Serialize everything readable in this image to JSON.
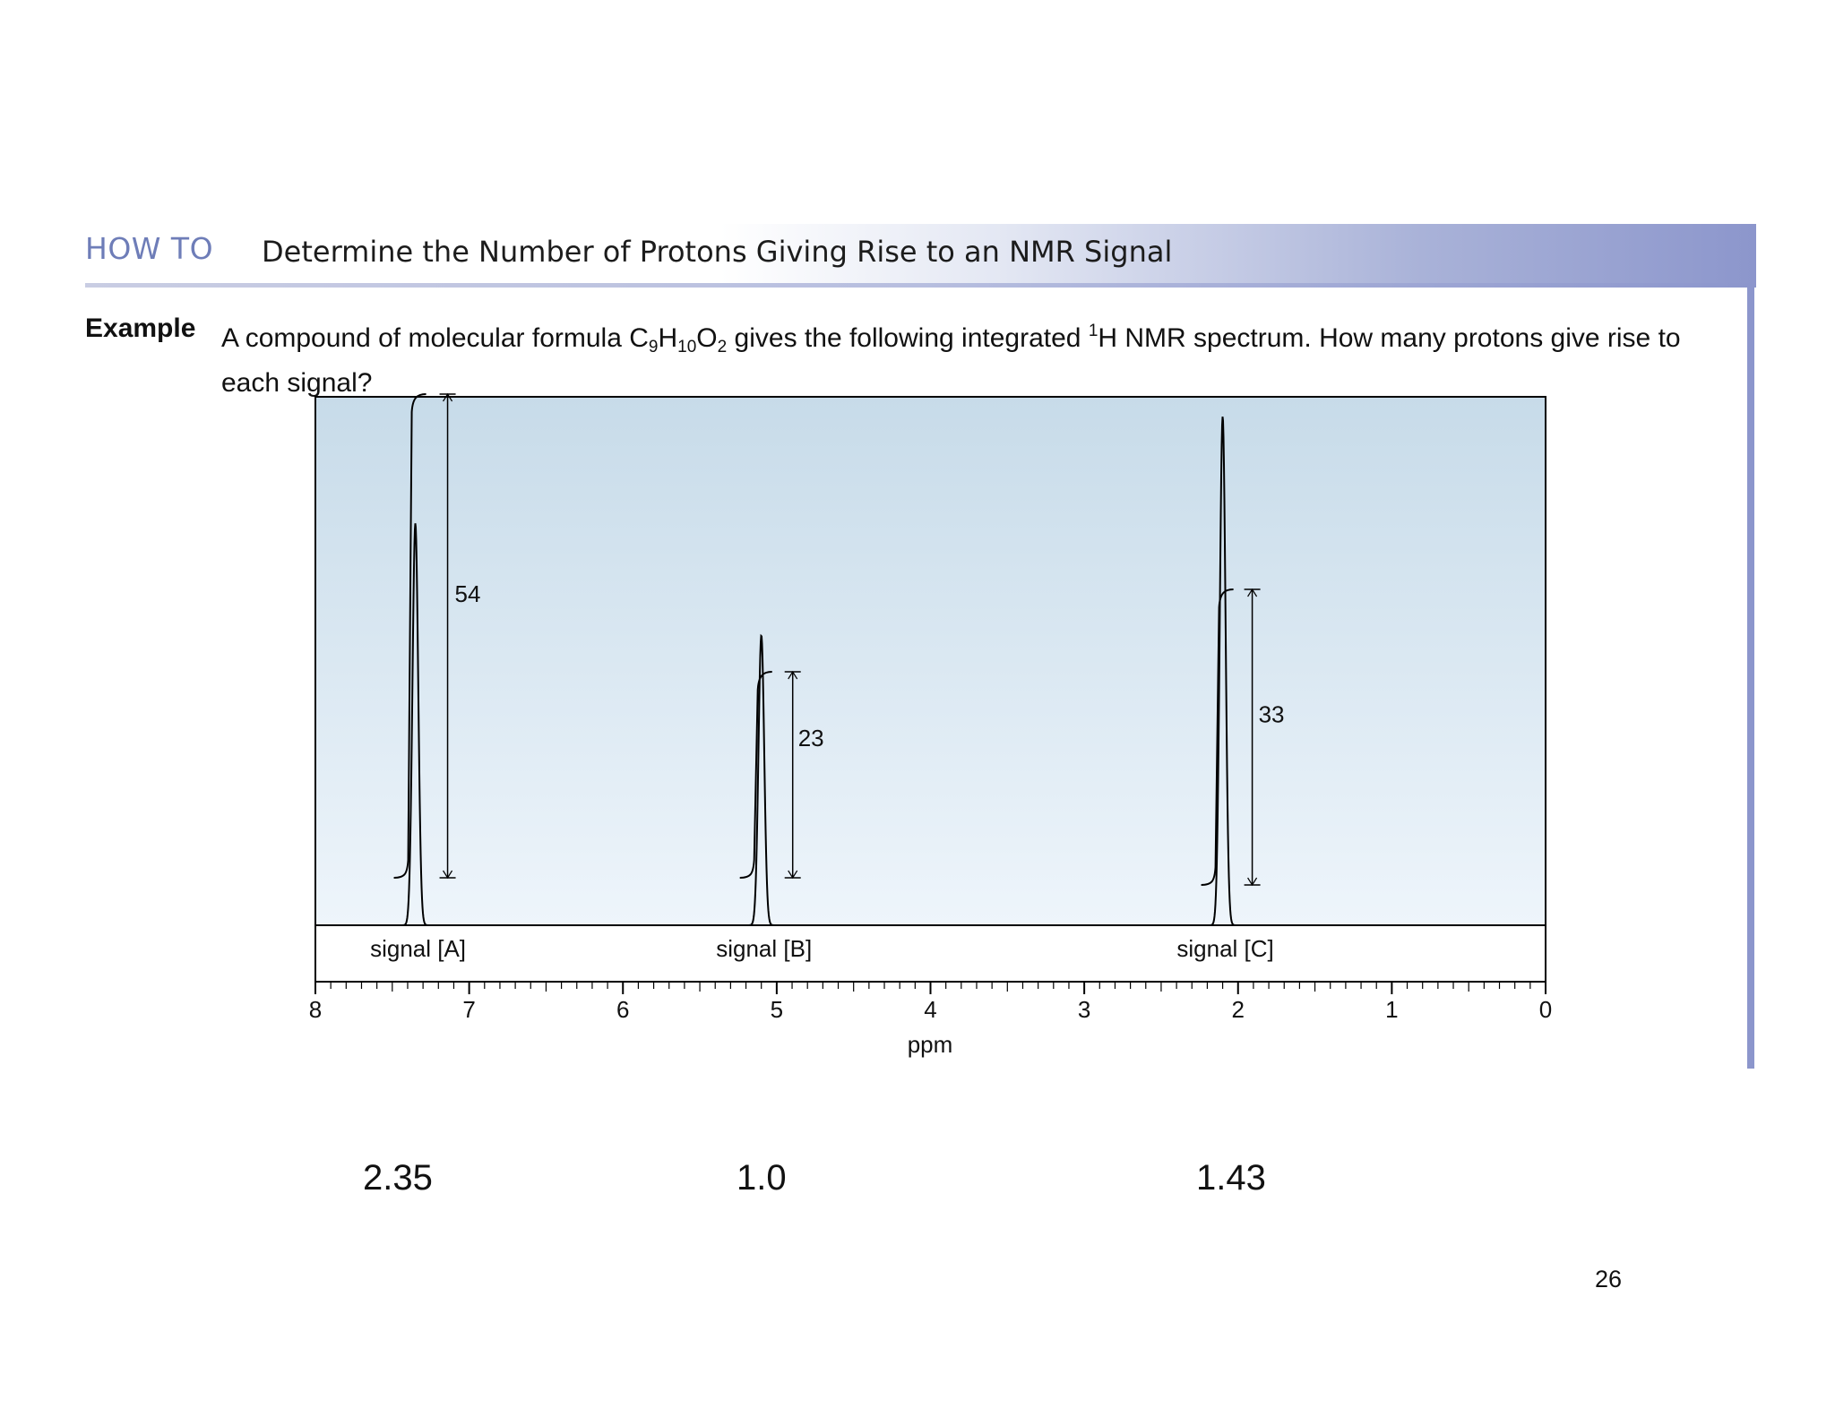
{
  "header": {
    "label": "HOW TO",
    "title": "Determine the Number of Protons Giving Rise to an NMR Signal"
  },
  "example": {
    "label": "Example",
    "text_part1": "A compound of molecular formula C",
    "sub_c": "9",
    "text_h": "H",
    "sub_h": "10",
    "text_o": "O",
    "sub_o": "2",
    "text_part2": " gives the following integrated ",
    "sup_1": "1",
    "text_part3": "H NMR spectrum. How many protons give rise to each signal?"
  },
  "chart_data": {
    "type": "line",
    "xlabel": "ppm",
    "xlim": [
      8,
      0
    ],
    "x_reversed": true,
    "x_ticks": [
      "8",
      "7",
      "6",
      "5",
      "4",
      "3",
      "2",
      "1",
      "0"
    ],
    "signals": [
      {
        "label": "signal [A]",
        "ppm": 7.35,
        "peak_height": 0.79,
        "integral": "54"
      },
      {
        "label": "signal [B]",
        "ppm": 5.1,
        "peak_height": 0.57,
        "integral": "23"
      },
      {
        "label": "signal [C]",
        "ppm": 2.1,
        "peak_height": 1.0,
        "integral": "33"
      }
    ]
  },
  "answers": [
    "2.35",
    "1.0",
    "1.43"
  ],
  "page_number": "26",
  "colors": {
    "accent": "#6e7db8",
    "plot_bg_top": "#c9dcea",
    "plot_bg_bottom": "#eef5fa",
    "trace": "#000000"
  }
}
